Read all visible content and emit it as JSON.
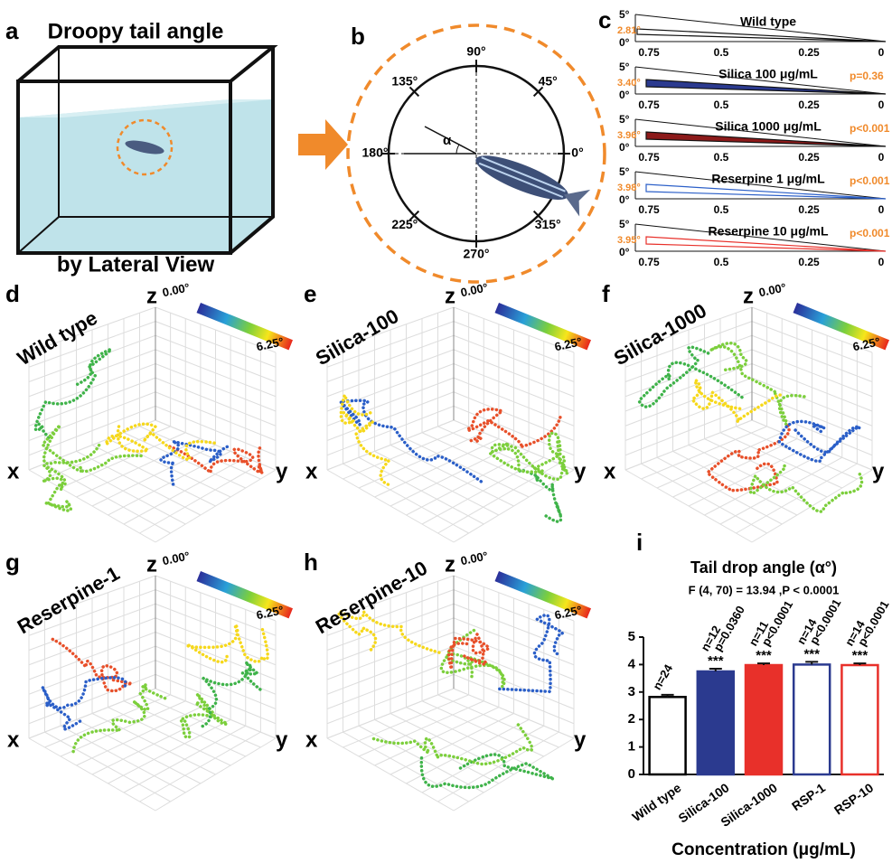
{
  "panel_a": {
    "label": "a",
    "title": "Droopy tail angle",
    "caption": "by Lateral View"
  },
  "panel_b": {
    "label": "b",
    "angle_labels": [
      "90°",
      "45°",
      "0°",
      "315°",
      "270°",
      "225°",
      "180°",
      "135°"
    ],
    "alpha": "α"
  },
  "panel_c": {
    "label": "c",
    "y_labels": [
      "5°",
      "0°"
    ],
    "x_labels": [
      "0.75",
      "0.5",
      "0.25",
      "0"
    ],
    "rows": [
      {
        "name": "Wild type",
        "angle": "2.81°"
      },
      {
        "name": "Silica 100 μg/mL",
        "angle": "3.40°",
        "p": "p=0.36"
      },
      {
        "name": "Silica 1000 μg/mL",
        "angle": "3.96°",
        "p": "p<0.001"
      },
      {
        "name": "Reserpine 1 μg/mL",
        "angle": "3.98°",
        "p": "p<0.001"
      },
      {
        "name": "Reserpine 10 μg/mL",
        "angle": "3.95°",
        "p": "p<0.001"
      }
    ]
  },
  "trajectories": {
    "axis_labels": [
      "x",
      "y",
      "z"
    ],
    "colorbar": [
      "0.00°",
      "6.25°"
    ],
    "panels": [
      {
        "label": "d",
        "name": "Wild type"
      },
      {
        "label": "e",
        "name": "Silica-100"
      },
      {
        "label": "f",
        "name": "Silica-1000"
      },
      {
        "label": "g",
        "name": "Reserpine-1"
      },
      {
        "label": "h",
        "name": "Reserpine-10"
      }
    ]
  },
  "chart_data": {
    "type": "bar",
    "label": "i",
    "title": "Tail drop angle (α°)",
    "subtitle": "F (4, 70) = 13.94 ,P < 0.0001",
    "xlabel": "Concentration (μg/mL)",
    "categories": [
      "Wild type",
      "Silica-100",
      "Silica-1000",
      "RSP-1",
      "RSP-10"
    ],
    "values": [
      2.82,
      3.75,
      3.98,
      4.0,
      3.98
    ],
    "errors": [
      0.08,
      0.1,
      0.06,
      0.1,
      0.06
    ],
    "edge_colors": [
      "#000000",
      "#2b3a8f",
      "#e8302a",
      "#2b3a8f",
      "#e8302a"
    ],
    "fill_colors": [
      "#ffffff",
      "#2b3a8f",
      "#e8302a",
      "#ffffff",
      "#ffffff"
    ],
    "annotations": [
      [
        "n=24"
      ],
      [
        "n=12",
        "p=0.0360",
        "***"
      ],
      [
        "n=11",
        "p<0.0001",
        "***"
      ],
      [
        "n=14",
        "p<0.0001",
        "***"
      ],
      [
        "n=14",
        "p<0.0001",
        "***"
      ]
    ],
    "ylim": [
      0,
      5
    ],
    "yticks": [
      0,
      1,
      2,
      3,
      4,
      5
    ]
  }
}
